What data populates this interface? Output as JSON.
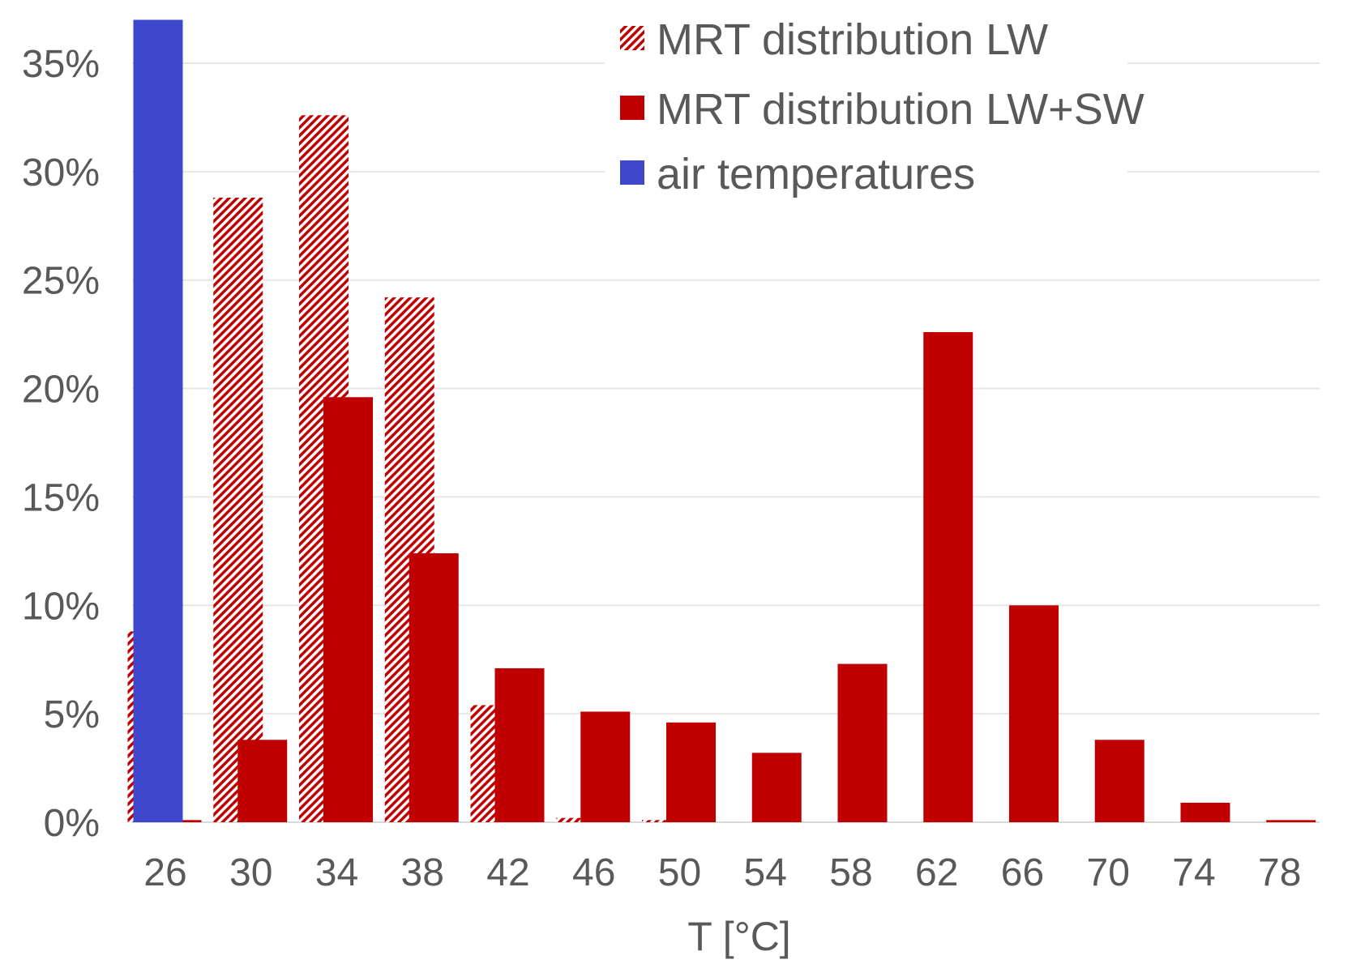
{
  "chart_data": {
    "type": "bar",
    "title": "",
    "xlabel": "T [°C]",
    "ylabel": "",
    "ylim": [
      0,
      0.37
    ],
    "yticks": [
      0,
      0.05,
      0.1,
      0.15,
      0.2,
      0.25,
      0.3,
      0.35
    ],
    "ytick_labels": [
      "0%",
      "5%",
      "10%",
      "15%",
      "20%",
      "25%",
      "30%",
      "35%"
    ],
    "categories": [
      "26",
      "30",
      "34",
      "38",
      "42",
      "46",
      "50",
      "54",
      "58",
      "62",
      "66",
      "70",
      "74",
      "78"
    ],
    "grid": true,
    "legend_position": "top-right",
    "series": [
      {
        "name": "MRT distribution LW",
        "style": "hatched",
        "color": "#C00000",
        "values": [
          0.088,
          0.288,
          0.326,
          0.242,
          0.054,
          0.002,
          0.001,
          0,
          0,
          0,
          0,
          0,
          0,
          0
        ]
      },
      {
        "name": "MRT distribution LW+SW",
        "style": "solid",
        "color": "#C00000",
        "values": [
          0.001,
          0.038,
          0.196,
          0.124,
          0.071,
          0.051,
          0.046,
          0.032,
          0.073,
          0.226,
          0.1,
          0.038,
          0.009,
          0.001
        ]
      },
      {
        "name": "air temperatures",
        "style": "solid",
        "color": "#3F48CC",
        "values": [
          0.37,
          0,
          0,
          0,
          0,
          0,
          0,
          0,
          0,
          0,
          0,
          0,
          0,
          0
        ]
      }
    ]
  }
}
